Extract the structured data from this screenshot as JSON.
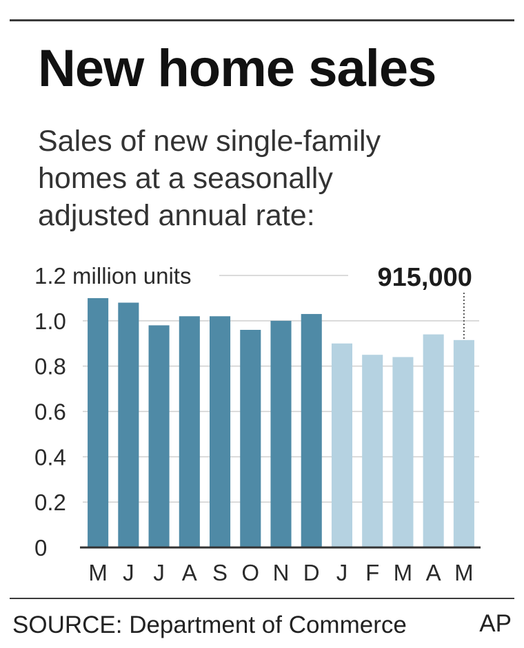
{
  "header": {
    "title": "New home sales",
    "subtitle": "Sales of new single-family homes at a seasonally adjusted annual rate:"
  },
  "footer": {
    "source": "SOURCE: Department of Commerce",
    "credit": "AP"
  },
  "colors": {
    "series_dark": "#4f8aa6",
    "series_light": "#b5d2e1",
    "grid": "#cfcfcf",
    "axis": "#333333"
  },
  "chart_data": {
    "type": "bar",
    "title": "New home sales",
    "ylabel": "million units",
    "ylim": [
      0,
      1.2
    ],
    "y_ticks": [
      "0",
      "0.2",
      "0.4",
      "0.6",
      "0.8",
      "1.0",
      "1.2 million units"
    ],
    "categories": [
      "M",
      "J",
      "J",
      "A",
      "S",
      "O",
      "N",
      "D",
      "J",
      "F",
      "M",
      "A",
      "M"
    ],
    "values": [
      1.1,
      1.08,
      0.98,
      1.02,
      1.02,
      0.96,
      1.0,
      1.03,
      0.9,
      0.85,
      0.84,
      0.94,
      0.915
    ],
    "shade": [
      "dark",
      "dark",
      "dark",
      "dark",
      "dark",
      "dark",
      "dark",
      "dark",
      "light",
      "light",
      "light",
      "light",
      "light"
    ],
    "annotation": {
      "text": "915,000",
      "index": 12
    },
    "grid": true
  }
}
